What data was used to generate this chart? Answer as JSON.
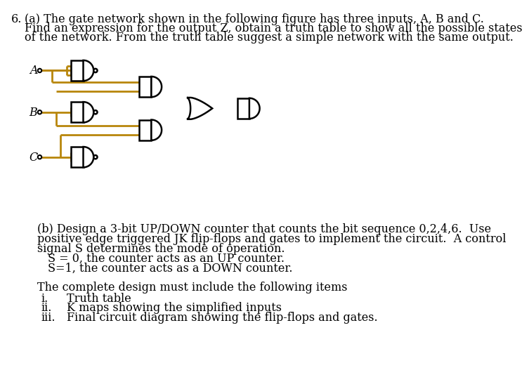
{
  "wire_color": "#B8860B",
  "gate_edge_color": "#000000",
  "gate_fill_color": "#FFFFFF",
  "background_color": "#FFFFFF",
  "text_color": "#000000",
  "title_num": "6.",
  "part_a_lines": [
    "(a) The gate network shown in the following figure has three inputs, A, B and C.",
    "Find an expression for the output Z, obtain a truth table to show all the possible states",
    "of the network. From the truth table suggest a simple network with the same output."
  ],
  "part_b_lines": [
    "(b) Design a 3-bit UP/DOWN counter that counts the bit sequence 0,2,4,6.  Use",
    "positive edge triggered JK flip-flops and gates to implement the circuit.  A control",
    "signal S determines the mode of operation.",
    "S = 0, the counter acts as an UP counter.",
    "S=1, the counter acts as a DOWN counter."
  ],
  "complete_line": "The complete design must include the following items",
  "list_nums": [
    "i.",
    "ii.",
    "iii."
  ],
  "list_items": [
    "Truth table",
    "K maps showing the simplified inputs",
    "Final circuit diagram showing the flip-flops and gates."
  ],
  "font_size": 11.5,
  "indent_label": 55,
  "indent_num": 18
}
